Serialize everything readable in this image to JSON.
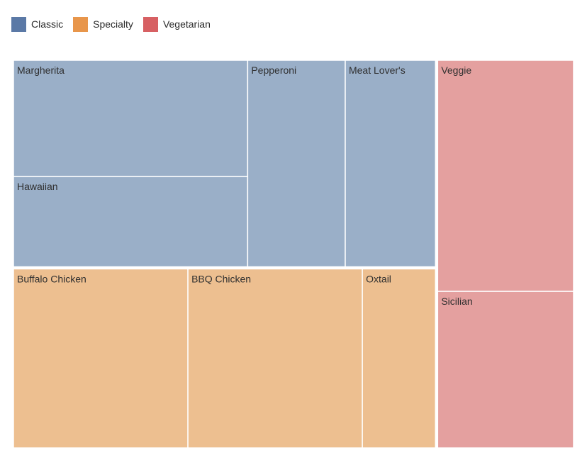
{
  "legend": {
    "items": [
      {
        "label": "Classic",
        "color": "#5b79a6"
      },
      {
        "label": "Specialty",
        "color": "#e8964b"
      },
      {
        "label": "Vegetarian",
        "color": "#d76063"
      }
    ]
  },
  "chart_data": {
    "type": "treemap",
    "title": "",
    "legend_position": "top-left",
    "groups": [
      {
        "name": "Classic",
        "fill": "#9aafc8",
        "items": [
          {
            "name": "Margherita",
            "value": 54
          },
          {
            "name": "Hawaiian",
            "value": 42
          },
          {
            "name": "Pepperoni",
            "value": 40
          },
          {
            "name": "Meat Lover's",
            "value": 37
          }
        ]
      },
      {
        "name": "Specialty",
        "fill": "#edbf90",
        "items": [
          {
            "name": "Buffalo Chicken",
            "value": 62
          },
          {
            "name": "BBQ Chicken",
            "value": 62
          },
          {
            "name": "Oxtail",
            "value": 26
          }
        ]
      },
      {
        "name": "Vegetarian",
        "fill": "#e4a09f",
        "items": [
          {
            "name": "Veggie",
            "value": 62
          },
          {
            "name": "Sicilian",
            "value": 42
          }
        ]
      }
    ]
  }
}
